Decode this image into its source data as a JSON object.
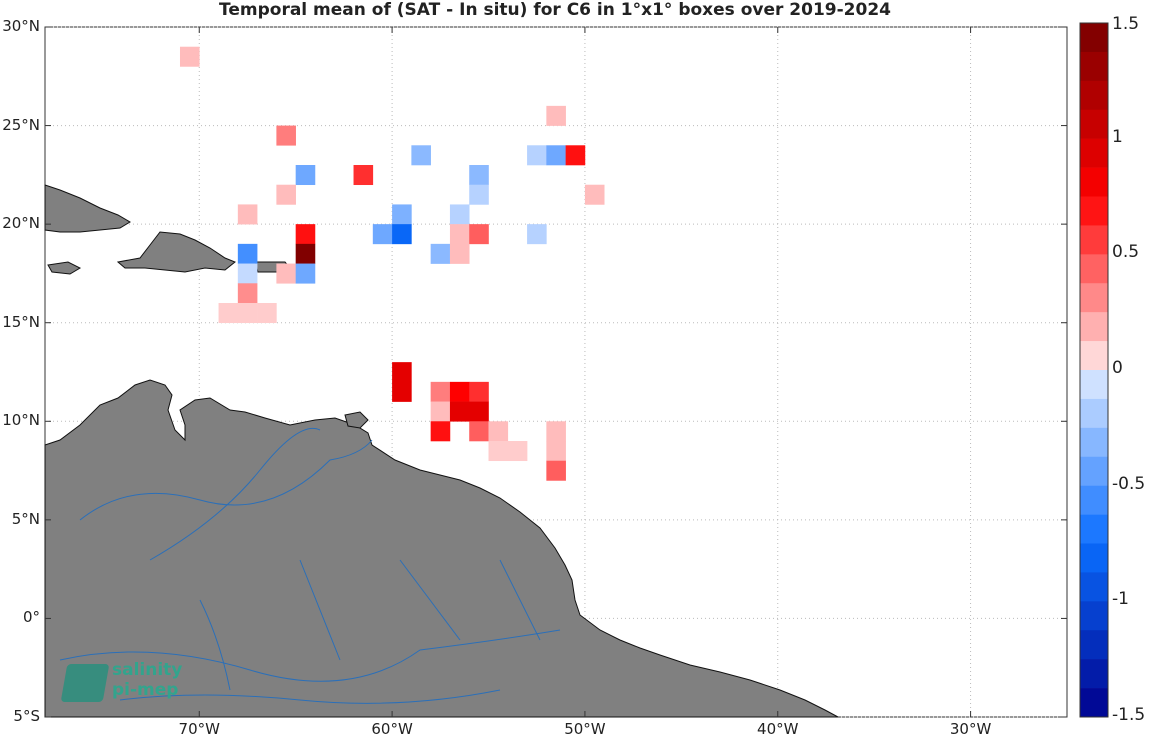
{
  "title": "Temporal mean of (SAT - In situ) for C6 in 1°x1° boxes over 2019-2024",
  "map": {
    "lon_range": [
      -78,
      -25
    ],
    "lat_range": [
      -5,
      30
    ],
    "land_color": "#808080",
    "river_color": "#2b6fb8",
    "ocean_color": "#ffffff",
    "grid": "dotted",
    "lat_ticks": [
      {
        "value": 30,
        "label": "30°N"
      },
      {
        "value": 25,
        "label": "25°N"
      },
      {
        "value": 20,
        "label": "20°N"
      },
      {
        "value": 15,
        "label": "15°N"
      },
      {
        "value": 10,
        "label": "10°N"
      },
      {
        "value": 5,
        "label": "5°N"
      },
      {
        "value": 0,
        "label": "0°"
      },
      {
        "value": -5,
        "label": "5°S"
      }
    ],
    "lon_ticks": [
      {
        "value": -70,
        "label": "70°W"
      },
      {
        "value": -60,
        "label": "60°W"
      },
      {
        "value": -50,
        "label": "50°W"
      },
      {
        "value": -40,
        "label": "40°W"
      },
      {
        "value": -30,
        "label": "30°W"
      }
    ]
  },
  "chart_data": {
    "type": "heatmap",
    "title": "Temporal mean of (SAT - In situ) for C6 in 1°x1° boxes over 2019-2024",
    "colorbar": {
      "range": [
        -1.5,
        1.5
      ],
      "ticks": [
        "1.5",
        "1",
        "0.5",
        "0",
        "-0.5",
        "-1",
        "-1.5"
      ],
      "tick_values": [
        1.5,
        1,
        0.5,
        0,
        -0.5,
        -1,
        -1.5
      ]
    },
    "cells": [
      {
        "lon": -71,
        "lat": 28,
        "value": 0.15
      },
      {
        "lon": -52,
        "lat": 25,
        "value": 0.15
      },
      {
        "lon": -66,
        "lat": 24,
        "value": 0.35
      },
      {
        "lon": -59,
        "lat": 23,
        "value": -0.3
      },
      {
        "lon": -53,
        "lat": 23,
        "value": -0.15
      },
      {
        "lon": -52,
        "lat": 23,
        "value": -0.4
      },
      {
        "lon": -51,
        "lat": 23,
        "value": 0.7
      },
      {
        "lon": -65,
        "lat": 22,
        "value": -0.4
      },
      {
        "lon": -62,
        "lat": 22,
        "value": 0.6
      },
      {
        "lon": -56,
        "lat": 22,
        "value": -0.3
      },
      {
        "lon": -66,
        "lat": 21,
        "value": 0.15
      },
      {
        "lon": -56,
        "lat": 21,
        "value": -0.15
      },
      {
        "lon": -50,
        "lat": 21,
        "value": 0.15
      },
      {
        "lon": -68,
        "lat": 20,
        "value": 0.15
      },
      {
        "lon": -60,
        "lat": 20,
        "value": -0.35
      },
      {
        "lon": -57,
        "lat": 20,
        "value": -0.15
      },
      {
        "lon": -65,
        "lat": 19,
        "value": 0.7
      },
      {
        "lon": -61,
        "lat": 19,
        "value": -0.4
      },
      {
        "lon": -60,
        "lat": 19,
        "value": -0.8
      },
      {
        "lon": -57,
        "lat": 19,
        "value": 0.15
      },
      {
        "lon": -56,
        "lat": 19,
        "value": 0.45
      },
      {
        "lon": -53,
        "lat": 19,
        "value": -0.15
      },
      {
        "lon": -68,
        "lat": 18,
        "value": -0.55
      },
      {
        "lon": -65,
        "lat": 18,
        "value": 1.45
      },
      {
        "lon": -58,
        "lat": 18,
        "value": -0.3
      },
      {
        "lon": -57,
        "lat": 18,
        "value": 0.15
      },
      {
        "lon": -68,
        "lat": 17,
        "value": -0.1
      },
      {
        "lon": -66,
        "lat": 17,
        "value": 0.15
      },
      {
        "lon": -65,
        "lat": 17,
        "value": -0.4
      },
      {
        "lon": -68,
        "lat": 16,
        "value": 0.3
      },
      {
        "lon": -69,
        "lat": 15,
        "value": 0.1
      },
      {
        "lon": -68,
        "lat": 15,
        "value": 0.1
      },
      {
        "lon": -67,
        "lat": 15,
        "value": 0.1
      },
      {
        "lon": -60,
        "lat": 12,
        "value": 0.9
      },
      {
        "lon": -60,
        "lat": 11,
        "value": 0.9
      },
      {
        "lon": -58,
        "lat": 11,
        "value": 0.35
      },
      {
        "lon": -57,
        "lat": 11,
        "value": 0.75
      },
      {
        "lon": -56,
        "lat": 11,
        "value": 0.6
      },
      {
        "lon": -58,
        "lat": 10,
        "value": 0.15
      },
      {
        "lon": -57,
        "lat": 10,
        "value": 0.9
      },
      {
        "lon": -56,
        "lat": 10,
        "value": 0.9
      },
      {
        "lon": -58,
        "lat": 9,
        "value": 0.7
      },
      {
        "lon": -56,
        "lat": 9,
        "value": 0.45
      },
      {
        "lon": -55,
        "lat": 9,
        "value": 0.15
      },
      {
        "lon": -52,
        "lat": 9,
        "value": 0.15
      },
      {
        "lon": -55,
        "lat": 8,
        "value": 0.1
      },
      {
        "lon": -54,
        "lat": 8,
        "value": 0.1
      },
      {
        "lon": -52,
        "lat": 8,
        "value": 0.15
      },
      {
        "lon": -52,
        "lat": 7,
        "value": 0.45
      }
    ]
  },
  "logo": {
    "line1": "salinity",
    "line2": "pi-mep"
  }
}
